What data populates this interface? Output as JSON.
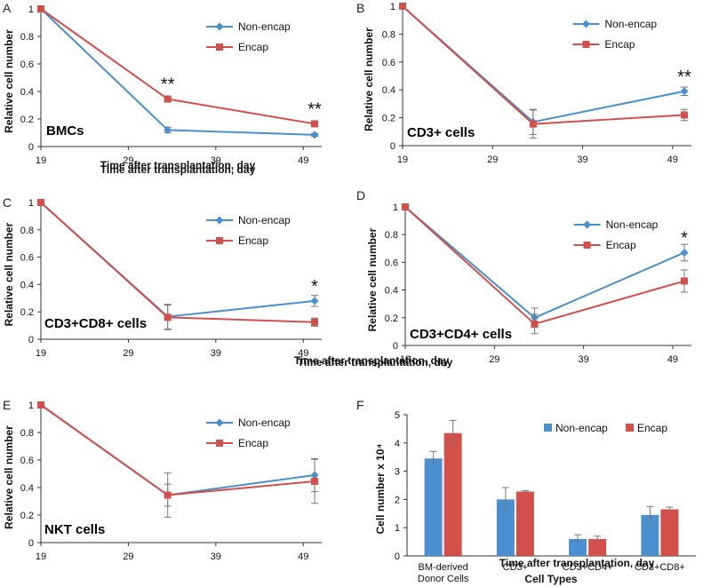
{
  "chart_data": [
    {
      "panel": "A",
      "type": "line",
      "title": "BMCs",
      "xlabel": "Time after transplantation, day",
      "ylabel": "Relative cell number",
      "xticks": [
        19,
        29,
        39,
        49
      ],
      "xlim": [
        19,
        50.5
      ],
      "yticks": [
        0,
        0.2,
        0.4,
        0.6,
        0.8,
        1
      ],
      "ylim": [
        0,
        1
      ],
      "x": [
        19,
        33.5,
        50.3
      ],
      "series": [
        {
          "name": "Non-encap",
          "color": "#4a8fce",
          "marker": "diamond",
          "values": [
            1,
            0.12,
            0.085
          ],
          "errors": [
            0,
            0.02,
            0.01
          ]
        },
        {
          "name": "Encap",
          "color": "#d2504b",
          "marker": "square",
          "values": [
            1,
            0.345,
            0.165
          ],
          "errors": [
            0,
            0.01,
            0.01
          ]
        }
      ],
      "annotations": [
        {
          "text": "**",
          "x": 33.5,
          "y": 0.345
        },
        {
          "text": "**",
          "x": 50.3,
          "y": 0.165
        }
      ],
      "legend": "top-right"
    },
    {
      "panel": "B",
      "type": "line",
      "title": "CD3+ cells",
      "xlabel": "Time after transplantation, day",
      "ylabel": "Relative cell number",
      "xticks": [
        19,
        29,
        39,
        49
      ],
      "xlim": [
        19,
        50.5
      ],
      "yticks": [
        0,
        0.2,
        0.4,
        0.6,
        0.8,
        1
      ],
      "ylim": [
        0,
        1
      ],
      "x": [
        19,
        33.5,
        50.3
      ],
      "series": [
        {
          "name": "Non-encap",
          "color": "#4a8fce",
          "marker": "diamond",
          "values": [
            1,
            0.17,
            0.39
          ],
          "errors": [
            0,
            0.09,
            0.03
          ]
        },
        {
          "name": "Encap",
          "color": "#d2504b",
          "marker": "square",
          "values": [
            1,
            0.155,
            0.22
          ],
          "errors": [
            0,
            0.1,
            0.04
          ]
        }
      ],
      "annotations": [
        {
          "text": "**",
          "x": 50.3,
          "y": 0.39
        }
      ],
      "legend": "top-right"
    },
    {
      "panel": "C",
      "type": "line",
      "title": "CD3+CD8+ cells",
      "xlabel": "Time after transplantation, day",
      "ylabel": "Relative cell number",
      "xticks": [
        19,
        29,
        39,
        49
      ],
      "xlim": [
        19,
        50.5
      ],
      "yticks": [
        0,
        0.2,
        0.4,
        0.6,
        0.8,
        1
      ],
      "ylim": [
        0,
        1
      ],
      "x": [
        19,
        33.5,
        50.3
      ],
      "series": [
        {
          "name": "Non-encap",
          "color": "#4a8fce",
          "marker": "diamond",
          "values": [
            1,
            0.165,
            0.28
          ],
          "errors": [
            0,
            0.09,
            0.04
          ]
        },
        {
          "name": "Encap",
          "color": "#d2504b",
          "marker": "square",
          "values": [
            1,
            0.16,
            0.125
          ],
          "errors": [
            0,
            0.09,
            0.03
          ]
        }
      ],
      "annotations": [
        {
          "text": "*",
          "x": 50.3,
          "y": 0.28
        }
      ],
      "legend": "top-right"
    },
    {
      "panel": "D",
      "type": "line",
      "title": "CD3+CD4+ cells",
      "xlabel": "Time after transplantation, day",
      "ylabel": "Relative cell number",
      "xticks": [
        19,
        29,
        39,
        49
      ],
      "xlim": [
        19,
        50.5
      ],
      "yticks": [
        0,
        0.2,
        0.4,
        0.6,
        0.8,
        1
      ],
      "ylim": [
        0,
        1
      ],
      "x": [
        19,
        33.5,
        50.3
      ],
      "series": [
        {
          "name": "Non-encap",
          "color": "#4a8fce",
          "marker": "diamond",
          "values": [
            1,
            0.2,
            0.67
          ],
          "errors": [
            0,
            0.07,
            0.06
          ]
        },
        {
          "name": "Encap",
          "color": "#d2504b",
          "marker": "square",
          "values": [
            1,
            0.155,
            0.465
          ],
          "errors": [
            0,
            0.07,
            0.08
          ]
        }
      ],
      "annotations": [
        {
          "text": "*",
          "x": 50.3,
          "y": 0.67
        }
      ],
      "legend": "top-right"
    },
    {
      "panel": "E",
      "type": "line",
      "title": "NKT cells",
      "xlabel": "Time after transplantation, day",
      "ylabel": "Relative cell number",
      "xticks": [
        19,
        29,
        39,
        49
      ],
      "xlim": [
        19,
        50.5
      ],
      "yticks": [
        0,
        0.2,
        0.4,
        0.6,
        0.8,
        1
      ],
      "ylim": [
        0,
        1
      ],
      "x": [
        19,
        33.5,
        50.3
      ],
      "series": [
        {
          "name": "Non-encap",
          "color": "#4a8fce",
          "marker": "diamond",
          "values": [
            1,
            0.345,
            0.49
          ],
          "errors": [
            0,
            0.16,
            0.12
          ]
        },
        {
          "name": "Encap",
          "color": "#d2504b",
          "marker": "square",
          "values": [
            1,
            0.345,
            0.445
          ],
          "errors": [
            0,
            0.08,
            0.16
          ]
        }
      ],
      "annotations": [],
      "legend": "top-right"
    },
    {
      "panel": "F",
      "type": "bar",
      "xlabel": "Cell Types",
      "ylabel": "Cell number x 10⁴",
      "categories": [
        "BM-derived Donor Cells",
        "CD3+",
        "CD3+CD4+",
        "CD3+CD8+"
      ],
      "yticks": [
        0,
        1,
        2,
        3,
        4,
        5
      ],
      "ylim": [
        0,
        5
      ],
      "series": [
        {
          "name": "Non-encap",
          "color": "#4a8fce",
          "values": [
            3.45,
            2.0,
            0.6,
            1.45
          ],
          "errors": [
            0.25,
            0.42,
            0.15,
            0.3
          ]
        },
        {
          "name": "Encap",
          "color": "#d2504b",
          "values": [
            4.35,
            2.28,
            0.6,
            1.65
          ],
          "errors": [
            0.45,
            0.03,
            0.1,
            0.08
          ]
        }
      ],
      "legend": "top-right"
    }
  ]
}
